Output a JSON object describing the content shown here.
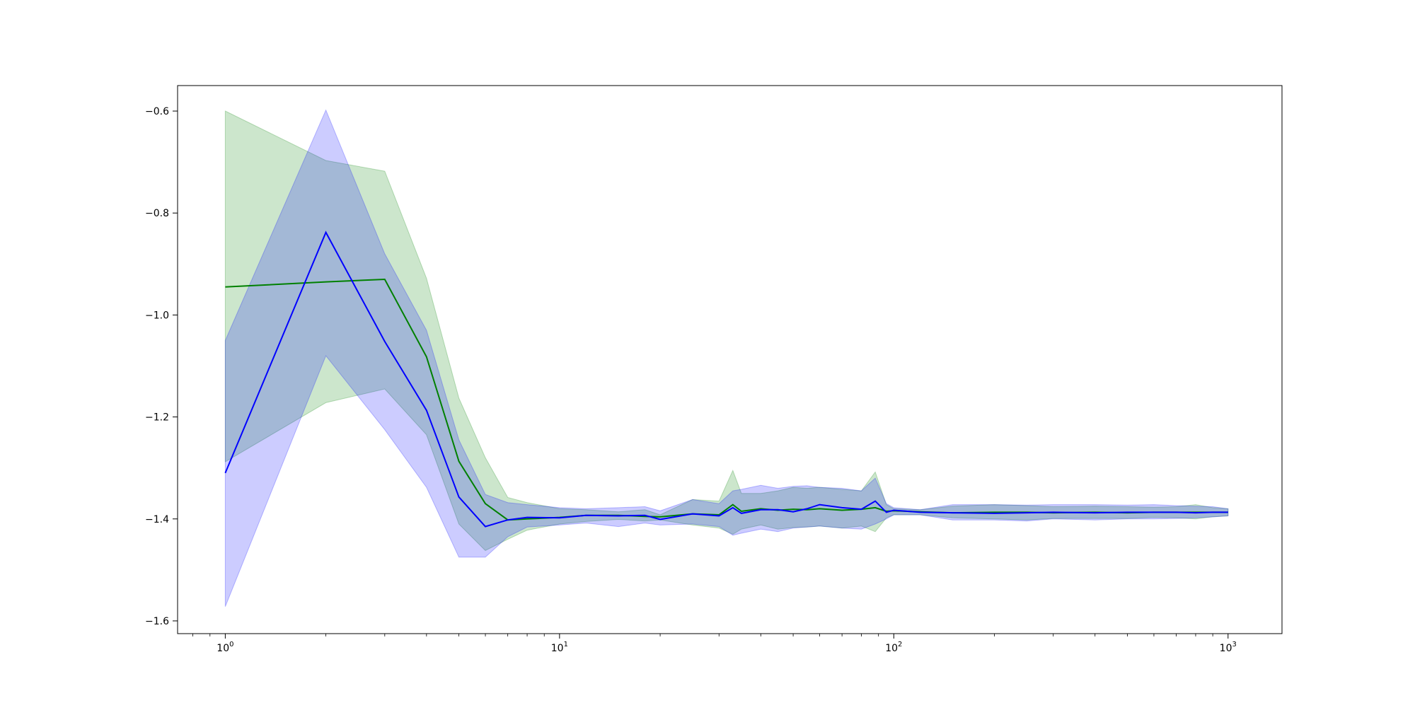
{
  "chart_data": {
    "type": "line",
    "title": "",
    "xlabel": "",
    "ylabel": "",
    "x_scale": "log",
    "xlim": [
      0.72,
      1450
    ],
    "ylim": [
      -1.625,
      -0.55
    ],
    "grid": false,
    "legend": "none",
    "x_ticks": [
      {
        "value": 1,
        "base": "10",
        "exp": "0"
      },
      {
        "value": 10,
        "base": "10",
        "exp": "1"
      },
      {
        "value": 100,
        "base": "10",
        "exp": "2"
      },
      {
        "value": 1000,
        "base": "10",
        "exp": "3"
      }
    ],
    "y_ticks": [
      {
        "value": -0.6,
        "label": "−0.6"
      },
      {
        "value": -0.8,
        "label": "−0.8"
      },
      {
        "value": -1.0,
        "label": "−1.0"
      },
      {
        "value": -1.2,
        "label": "−1.2"
      },
      {
        "value": -1.4,
        "label": "−1.4"
      },
      {
        "value": -1.6,
        "label": "−1.6"
      }
    ],
    "series": [
      {
        "color": "#008000",
        "band_color": "#008000",
        "x": [
          1,
          2,
          3,
          4,
          5,
          6,
          7,
          8,
          10,
          12,
          15,
          18,
          20,
          25,
          30,
          33,
          35,
          40,
          45,
          50,
          55,
          60,
          70,
          80,
          88,
          95,
          100,
          120,
          150,
          200,
          250,
          300,
          400,
          500,
          600,
          700,
          800,
          900,
          1000
        ],
        "mean": [
          -0.945,
          -0.935,
          -0.93,
          -1.082,
          -1.287,
          -1.37,
          -1.402,
          -1.4,
          -1.397,
          -1.393,
          -1.393,
          -1.395,
          -1.396,
          -1.39,
          -1.392,
          -1.372,
          -1.385,
          -1.38,
          -1.383,
          -1.381,
          -1.382,
          -1.38,
          -1.383,
          -1.381,
          -1.378,
          -1.385,
          -1.384,
          -1.386,
          -1.388,
          -1.387,
          -1.387,
          -1.388,
          -1.387,
          -1.388,
          -1.387,
          -1.387,
          -1.387,
          -1.387,
          -1.387
        ],
        "upper": [
          -0.6,
          -0.697,
          -0.718,
          -0.928,
          -1.163,
          -1.28,
          -1.358,
          -1.368,
          -1.38,
          -1.382,
          -1.386,
          -1.382,
          -1.392,
          -1.362,
          -1.365,
          -1.305,
          -1.35,
          -1.35,
          -1.345,
          -1.338,
          -1.34,
          -1.338,
          -1.342,
          -1.345,
          -1.308,
          -1.372,
          -1.38,
          -1.382,
          -1.375,
          -1.372,
          -1.374,
          -1.376,
          -1.375,
          -1.376,
          -1.377,
          -1.376,
          -1.372,
          -1.378,
          -1.38
        ],
        "lower": [
          -1.288,
          -1.172,
          -1.145,
          -1.235,
          -1.41,
          -1.462,
          -1.44,
          -1.422,
          -1.41,
          -1.405,
          -1.401,
          -1.404,
          -1.402,
          -1.412,
          -1.418,
          -1.43,
          -1.42,
          -1.412,
          -1.42,
          -1.417,
          -1.416,
          -1.414,
          -1.418,
          -1.414,
          -1.425,
          -1.398,
          -1.392,
          -1.392,
          -1.398,
          -1.4,
          -1.402,
          -1.399,
          -1.399,
          -1.399,
          -1.397,
          -1.398,
          -1.4,
          -1.396,
          -1.394
        ]
      },
      {
        "color": "#0000ff",
        "band_color": "#0000ff",
        "x": [
          1,
          2,
          3,
          4,
          5,
          6,
          7,
          8,
          10,
          12,
          15,
          18,
          20,
          25,
          30,
          33,
          35,
          40,
          45,
          50,
          55,
          60,
          70,
          80,
          88,
          95,
          100,
          120,
          150,
          200,
          250,
          300,
          400,
          500,
          600,
          700,
          800,
          900,
          1000
        ],
        "mean": [
          -1.31,
          -0.838,
          -1.052,
          -1.187,
          -1.357,
          -1.415,
          -1.402,
          -1.397,
          -1.398,
          -1.393,
          -1.394,
          -1.393,
          -1.401,
          -1.39,
          -1.394,
          -1.378,
          -1.389,
          -1.382,
          -1.382,
          -1.386,
          -1.38,
          -1.372,
          -1.378,
          -1.381,
          -1.365,
          -1.387,
          -1.383,
          -1.387,
          -1.388,
          -1.389,
          -1.388,
          -1.387,
          -1.388,
          -1.387,
          -1.387,
          -1.387,
          -1.388,
          -1.387,
          -1.387
        ],
        "upper": [
          -1.05,
          -0.598,
          -0.88,
          -1.03,
          -1.245,
          -1.352,
          -1.368,
          -1.372,
          -1.378,
          -1.38,
          -1.378,
          -1.376,
          -1.384,
          -1.362,
          -1.37,
          -1.345,
          -1.342,
          -1.334,
          -1.34,
          -1.336,
          -1.335,
          -1.338,
          -1.34,
          -1.345,
          -1.32,
          -1.37,
          -1.378,
          -1.382,
          -1.372,
          -1.372,
          -1.373,
          -1.372,
          -1.372,
          -1.373,
          -1.372,
          -1.374,
          -1.375,
          -1.376,
          -1.38
        ],
        "lower": [
          -1.572,
          -1.08,
          -1.225,
          -1.338,
          -1.475,
          -1.475,
          -1.435,
          -1.416,
          -1.412,
          -1.408,
          -1.415,
          -1.408,
          -1.412,
          -1.41,
          -1.415,
          -1.432,
          -1.428,
          -1.42,
          -1.425,
          -1.418,
          -1.416,
          -1.414,
          -1.418,
          -1.42,
          -1.41,
          -1.4,
          -1.392,
          -1.392,
          -1.402,
          -1.402,
          -1.404,
          -1.4,
          -1.402,
          -1.4,
          -1.4,
          -1.399,
          -1.398,
          -1.396,
          -1.394
        ]
      }
    ]
  }
}
